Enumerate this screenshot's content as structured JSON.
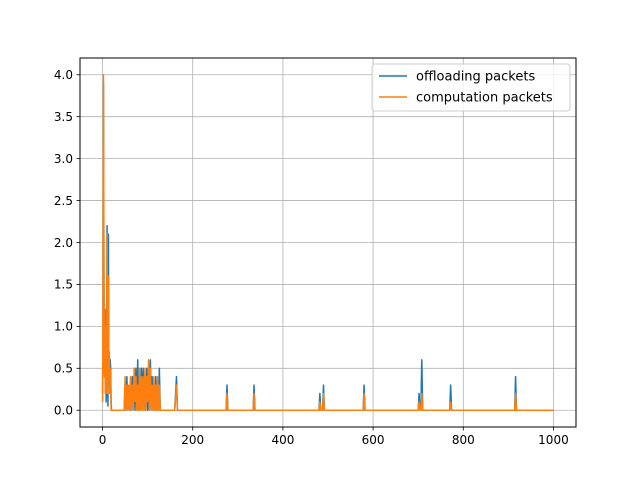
{
  "chart_data": {
    "type": "line",
    "title": "",
    "xlabel": "",
    "ylabel": "",
    "xlim": [
      -50,
      1050
    ],
    "ylim": [
      -0.2,
      4.2
    ],
    "xticks": [
      0,
      200,
      400,
      600,
      800,
      1000
    ],
    "yticks": [
      0.0,
      0.5,
      1.0,
      1.5,
      2.0,
      2.5,
      3.0,
      3.5,
      4.0
    ],
    "xtick_labels": [
      "0",
      "200",
      "400",
      "600",
      "800",
      "1000"
    ],
    "ytick_labels": [
      "0.0",
      "0.5",
      "1.0",
      "1.5",
      "2.0",
      "2.5",
      "3.0",
      "3.5",
      "4.0"
    ],
    "grid": true,
    "legend_position": "top-right",
    "series": [
      {
        "name": "offloading packets",
        "color": "#1f77b4",
        "points": [
          [
            0,
            0.2
          ],
          [
            1,
            1.0
          ],
          [
            2,
            3.9
          ],
          [
            3,
            1.6
          ],
          [
            4,
            0.5
          ],
          [
            5,
            0.9
          ],
          [
            6,
            0.3
          ],
          [
            7,
            1.2
          ],
          [
            8,
            0.1
          ],
          [
            9,
            0.3
          ],
          [
            10,
            2.2
          ],
          [
            11,
            0.6
          ],
          [
            12,
            0.05
          ],
          [
            13,
            2.1
          ],
          [
            14,
            0.3
          ],
          [
            15,
            0.7
          ],
          [
            16,
            0.3
          ],
          [
            17,
            0.6
          ],
          [
            18,
            0.5
          ],
          [
            19,
            0.1
          ],
          [
            20,
            0.0
          ],
          [
            48,
            0.0
          ],
          [
            50,
            0.3
          ],
          [
            52,
            0.0
          ],
          [
            54,
            0.4
          ],
          [
            56,
            0.0
          ],
          [
            58,
            0.2
          ],
          [
            60,
            0.0
          ],
          [
            62,
            0.3
          ],
          [
            64,
            0.0
          ],
          [
            66,
            0.4
          ],
          [
            68,
            0.1
          ],
          [
            70,
            0.4
          ],
          [
            72,
            0.0
          ],
          [
            74,
            0.5
          ],
          [
            76,
            0.0
          ],
          [
            78,
            0.6
          ],
          [
            80,
            0.0
          ],
          [
            82,
            0.4
          ],
          [
            84,
            0.0
          ],
          [
            86,
            0.5
          ],
          [
            88,
            0.1
          ],
          [
            90,
            0.5
          ],
          [
            92,
            0.0
          ],
          [
            94,
            0.3
          ],
          [
            96,
            0.0
          ],
          [
            98,
            0.5
          ],
          [
            100,
            0.0
          ],
          [
            102,
            0.4
          ],
          [
            104,
            0.0
          ],
          [
            106,
            0.6
          ],
          [
            108,
            0.1
          ],
          [
            110,
            0.4
          ],
          [
            112,
            0.0
          ],
          [
            114,
            0.3
          ],
          [
            116,
            0.0
          ],
          [
            118,
            0.4
          ],
          [
            120,
            0.0
          ],
          [
            122,
            0.3
          ],
          [
            124,
            0.0
          ],
          [
            126,
            0.5
          ],
          [
            128,
            0.0
          ],
          [
            130,
            0.0
          ],
          [
            160,
            0.0
          ],
          [
            164,
            0.4
          ],
          [
            166,
            0.0
          ],
          [
            274,
            0.0
          ],
          [
            276,
            0.3
          ],
          [
            278,
            0.0
          ],
          [
            334,
            0.0
          ],
          [
            336,
            0.3
          ],
          [
            338,
            0.0
          ],
          [
            480,
            0.0
          ],
          [
            482,
            0.2
          ],
          [
            484,
            0.0
          ],
          [
            488,
            0.0
          ],
          [
            490,
            0.3
          ],
          [
            492,
            0.0
          ],
          [
            578,
            0.0
          ],
          [
            580,
            0.3
          ],
          [
            582,
            0.0
          ],
          [
            700,
            0.0
          ],
          [
            702,
            0.2
          ],
          [
            704,
            0.0
          ],
          [
            706,
            0.0
          ],
          [
            708,
            0.6
          ],
          [
            710,
            0.0
          ],
          [
            770,
            0.0
          ],
          [
            772,
            0.3
          ],
          [
            774,
            0.0
          ],
          [
            914,
            0.0
          ],
          [
            916,
            0.4
          ],
          [
            918,
            0.0
          ],
          [
            1000,
            0.0
          ]
        ]
      },
      {
        "name": "computation packets",
        "color": "#ff7f0e",
        "points": [
          [
            0,
            0.1
          ],
          [
            1,
            1.2
          ],
          [
            2,
            4.0
          ],
          [
            3,
            2.0
          ],
          [
            4,
            0.4
          ],
          [
            5,
            1.2
          ],
          [
            6,
            0.2
          ],
          [
            7,
            1.0
          ],
          [
            8,
            0.3
          ],
          [
            9,
            0.2
          ],
          [
            10,
            2.1
          ],
          [
            11,
            0.5
          ],
          [
            12,
            0.2
          ],
          [
            13,
            1.6
          ],
          [
            14,
            0.4
          ],
          [
            15,
            0.7
          ],
          [
            16,
            0.2
          ],
          [
            17,
            0.5
          ],
          [
            18,
            0.4
          ],
          [
            19,
            0.0
          ],
          [
            20,
            0.0
          ],
          [
            48,
            0.0
          ],
          [
            50,
            0.4
          ],
          [
            52,
            0.0
          ],
          [
            54,
            0.3
          ],
          [
            56,
            0.0
          ],
          [
            58,
            0.3
          ],
          [
            60,
            0.0
          ],
          [
            62,
            0.4
          ],
          [
            64,
            0.0
          ],
          [
            66,
            0.3
          ],
          [
            68,
            0.0
          ],
          [
            70,
            0.5
          ],
          [
            72,
            0.1
          ],
          [
            74,
            0.4
          ],
          [
            76,
            0.0
          ],
          [
            78,
            0.3
          ],
          [
            80,
            0.0
          ],
          [
            82,
            0.5
          ],
          [
            84,
            0.0
          ],
          [
            86,
            0.4
          ],
          [
            88,
            0.0
          ],
          [
            90,
            0.4
          ],
          [
            92,
            0.0
          ],
          [
            94,
            0.5
          ],
          [
            96,
            0.0
          ],
          [
            98,
            0.4
          ],
          [
            100,
            0.1
          ],
          [
            102,
            0.6
          ],
          [
            104,
            0.0
          ],
          [
            106,
            0.5
          ],
          [
            108,
            0.0
          ],
          [
            110,
            0.3
          ],
          [
            112,
            0.0
          ],
          [
            114,
            0.4
          ],
          [
            116,
            0.0
          ],
          [
            118,
            0.3
          ],
          [
            120,
            0.0
          ],
          [
            122,
            0.4
          ],
          [
            124,
            0.0
          ],
          [
            126,
            0.3
          ],
          [
            128,
            0.0
          ],
          [
            130,
            0.0
          ],
          [
            160,
            0.0
          ],
          [
            164,
            0.3
          ],
          [
            166,
            0.0
          ],
          [
            274,
            0.0
          ],
          [
            276,
            0.2
          ],
          [
            278,
            0.0
          ],
          [
            334,
            0.0
          ],
          [
            336,
            0.2
          ],
          [
            338,
            0.0
          ],
          [
            480,
            0.0
          ],
          [
            482,
            0.1
          ],
          [
            484,
            0.0
          ],
          [
            488,
            0.0
          ],
          [
            490,
            0.2
          ],
          [
            492,
            0.0
          ],
          [
            578,
            0.0
          ],
          [
            580,
            0.2
          ],
          [
            582,
            0.0
          ],
          [
            700,
            0.0
          ],
          [
            702,
            0.1
          ],
          [
            704,
            0.0
          ],
          [
            706,
            0.0
          ],
          [
            708,
            0.2
          ],
          [
            710,
            0.0
          ],
          [
            770,
            0.0
          ],
          [
            772,
            0.1
          ],
          [
            774,
            0.0
          ],
          [
            914,
            0.0
          ],
          [
            916,
            0.2
          ],
          [
            918,
            0.0
          ],
          [
            1000,
            0.0
          ]
        ]
      }
    ]
  }
}
